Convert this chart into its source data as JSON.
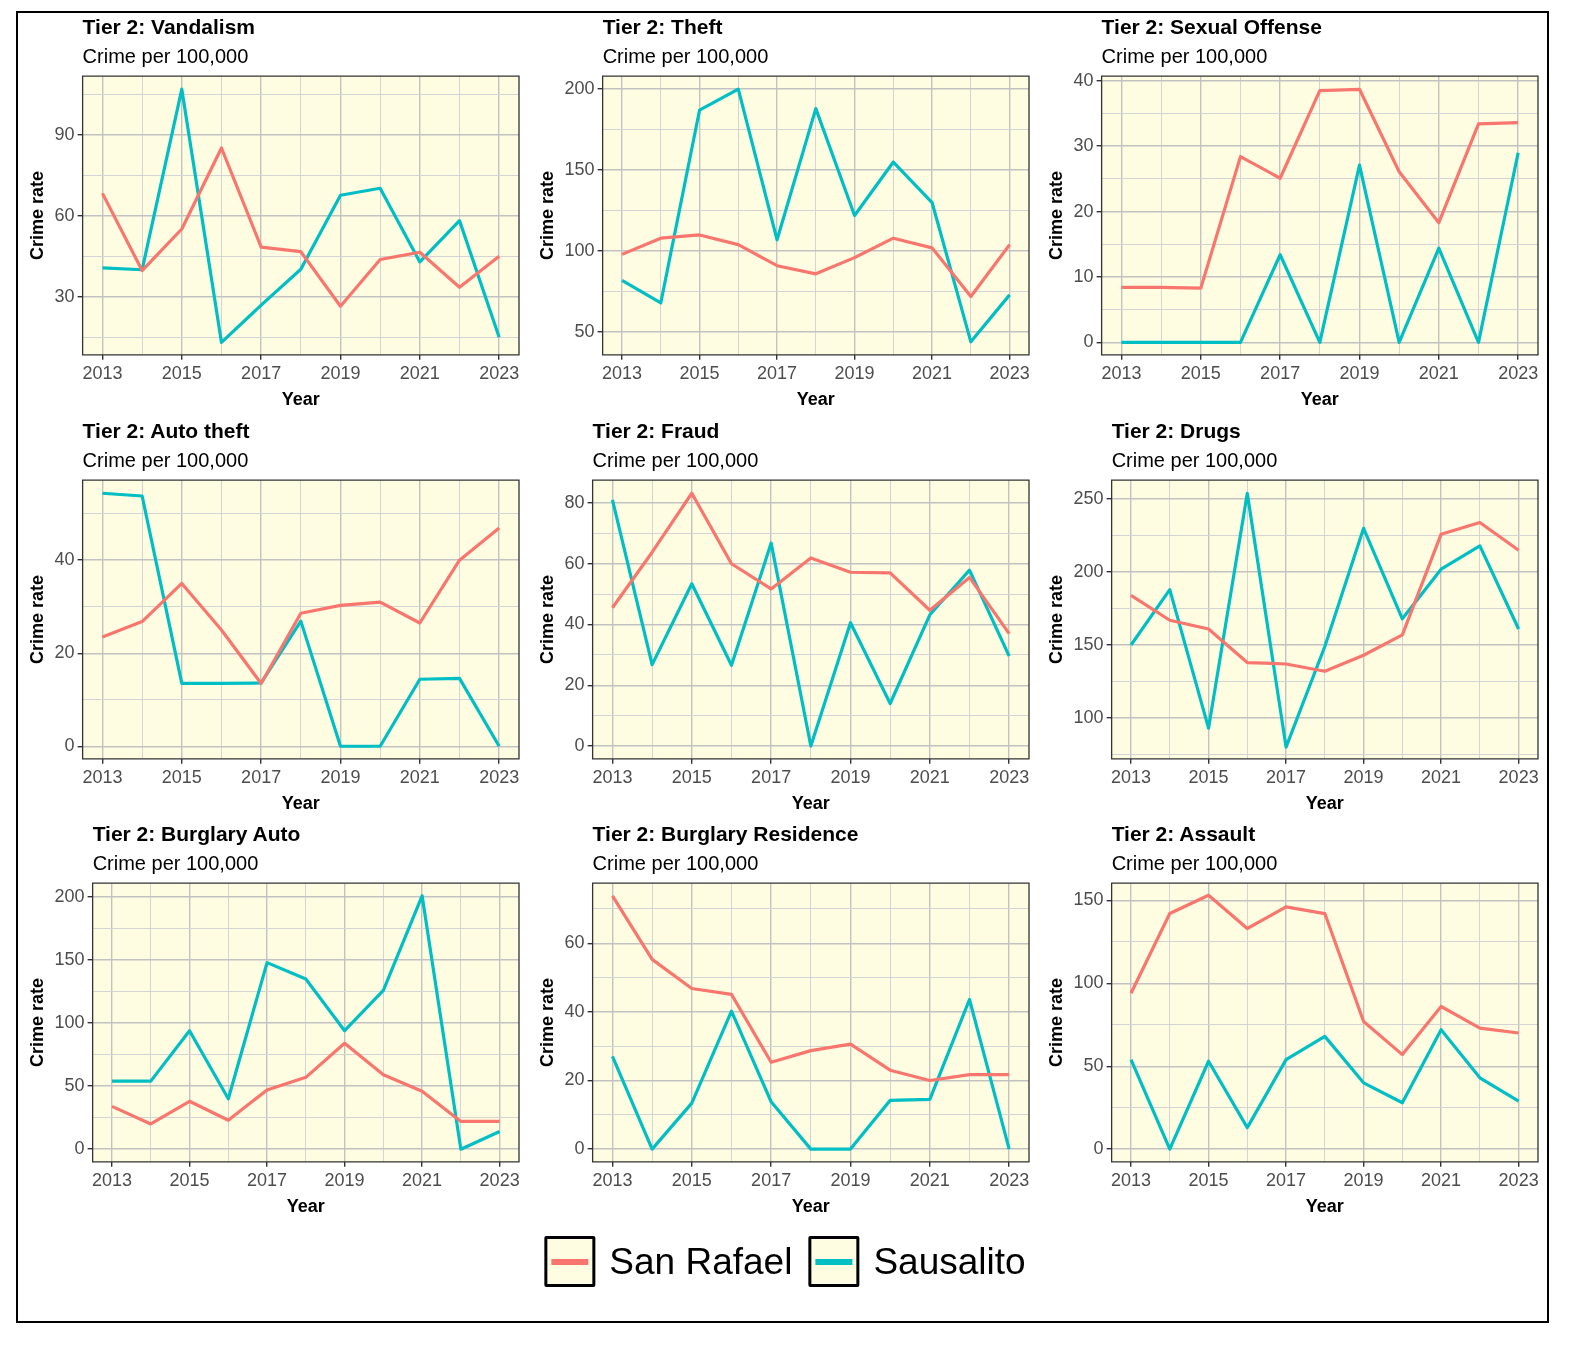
{
  "chart_data": [
    {
      "type": "line",
      "title": "Tier 2: Vandalism",
      "subtitle": "Crime per 100,000",
      "xlabel": "Year",
      "ylabel": "Crime rate",
      "grid": true,
      "x": [
        2013,
        2014,
        2015,
        2016,
        2017,
        2018,
        2019,
        2020,
        2021,
        2022,
        2023
      ],
      "xlim": [
        2012.5,
        2023.5
      ],
      "xticks": [
        2013,
        {
          "value": 2014,
          "label": null
        },
        2015,
        {
          "value": 2016,
          "label": null
        },
        2017,
        {
          "value": 2018,
          "label": null
        },
        2019,
        {
          "value": 2020,
          "label": null
        },
        2021,
        {
          "value": 2022,
          "label": null
        },
        2023
      ],
      "ylim": [
        8.6,
        111.8
      ],
      "yticks": [
        {
          "value": 15,
          "label": null
        },
        30,
        {
          "value": 45,
          "label": null
        },
        60,
        {
          "value": 75,
          "label": null
        },
        90,
        {
          "value": 105,
          "label": null
        }
      ],
      "series": [
        {
          "color": "#f8766d",
          "values": [
            68.4,
            39.8,
            55.2,
            85.2,
            48.5,
            46.8,
            26.6,
            43.9,
            46.6,
            33.6,
            45.1
          ]
        },
        {
          "color": "#00bfc4",
          "values": [
            40.8,
            40.1,
            107.0,
            13.2,
            27.0,
            40.3,
            67.7,
            70.3,
            43.0,
            58.3,
            15.1
          ]
        }
      ]
    },
    {
      "type": "line",
      "title": "Tier 2: Theft",
      "subtitle": "Crime per 100,000",
      "xlabel": "Year",
      "ylabel": "Crime rate",
      "grid": true,
      "x": [
        2013,
        2014,
        2015,
        2016,
        2017,
        2018,
        2019,
        2020,
        2021,
        2022,
        2023
      ],
      "xlim": [
        2012.5,
        2023.5
      ],
      "xticks": [
        2013,
        {
          "value": 2014,
          "label": null
        },
        2015,
        {
          "value": 2016,
          "label": null
        },
        2017,
        {
          "value": 2018,
          "label": null
        },
        2019,
        {
          "value": 2020,
          "label": null
        },
        2021,
        {
          "value": 2022,
          "label": null
        },
        2023
      ],
      "ylim": [
        36,
        208
      ],
      "yticks": [
        50,
        {
          "value": 75,
          "label": null
        },
        100,
        {
          "value": 125,
          "label": null
        },
        150,
        {
          "value": 175,
          "label": null
        },
        200
      ],
      "series": [
        {
          "color": "#f8766d",
          "values": [
            98,
            108,
            110,
            104,
            91,
            86,
            96,
            108,
            102,
            72,
            104
          ]
        },
        {
          "color": "#00bfc4",
          "values": [
            82,
            68,
            187,
            200,
            107,
            188,
            122,
            155,
            130,
            44,
            73
          ]
        }
      ]
    },
    {
      "type": "line",
      "title": "Tier 2: Sexual Offense",
      "subtitle": "Crime per 100,000",
      "xlabel": "Year",
      "ylabel": "Crime rate",
      "grid": true,
      "x": [
        2013,
        2014,
        2015,
        2016,
        2017,
        2018,
        2019,
        2020,
        2021,
        2022,
        2023
      ],
      "xlim": [
        2012.5,
        2023.5
      ],
      "xticks": [
        2013,
        {
          "value": 2014,
          "label": null
        },
        2015,
        {
          "value": 2016,
          "label": null
        },
        2017,
        {
          "value": 2018,
          "label": null
        },
        2019,
        {
          "value": 2020,
          "label": null
        },
        2021,
        {
          "value": 2022,
          "label": null
        },
        2023
      ],
      "ylim": [
        -1.9,
        40.7
      ],
      "yticks": [
        0,
        {
          "value": 5,
          "label": null
        },
        10,
        {
          "value": 15,
          "label": null
        },
        20,
        {
          "value": 25,
          "label": null
        },
        30,
        {
          "value": 35,
          "label": null
        },
        40
      ],
      "series": [
        {
          "color": "#f8766d",
          "values": [
            8.4,
            8.4,
            8.3,
            28.4,
            25.1,
            38.5,
            38.7,
            26.1,
            18.3,
            33.4,
            33.6
          ]
        },
        {
          "color": "#00bfc4",
          "values": [
            0,
            0,
            0,
            0,
            13.4,
            0,
            27.1,
            0,
            14.4,
            0,
            29.0
          ]
        }
      ]
    },
    {
      "type": "line",
      "title": "Tier 2: Auto theft",
      "subtitle": "Crime per 100,000",
      "xlabel": "Year",
      "ylabel": "Crime rate",
      "grid": true,
      "x": [
        2013,
        2014,
        2015,
        2016,
        2017,
        2018,
        2019,
        2020,
        2021,
        2022,
        2023
      ],
      "xlim": [
        2012.5,
        2023.5
      ],
      "xticks": [
        2013,
        {
          "value": 2014,
          "label": null
        },
        2015,
        {
          "value": 2016,
          "label": null
        },
        2017,
        {
          "value": 2018,
          "label": null
        },
        2019,
        {
          "value": 2020,
          "label": null
        },
        2021,
        {
          "value": 2022,
          "label": null
        },
        2023
      ],
      "ylim": [
        -2.7,
        57.2
      ],
      "yticks": [
        0,
        {
          "value": 10,
          "label": null
        },
        20,
        {
          "value": 30,
          "label": null
        },
        40,
        {
          "value": 50,
          "label": null
        }
      ],
      "series": [
        {
          "color": "#f8766d",
          "values": [
            23.5,
            26.8,
            35.0,
            25.0,
            13.5,
            28.6,
            30.3,
            31.0,
            26.5,
            40.0,
            46.9
          ]
        },
        {
          "color": "#00bfc4",
          "values": [
            54.4,
            53.8,
            13.5,
            13.5,
            13.6,
            26.9,
            0,
            0,
            14.4,
            14.6,
            0
          ]
        }
      ]
    },
    {
      "type": "line",
      "title": "Tier 2: Fraud",
      "subtitle": "Crime per 100,000",
      "xlabel": "Year",
      "ylabel": "Crime rate",
      "grid": true,
      "x": [
        2013,
        2014,
        2015,
        2016,
        2017,
        2018,
        2019,
        2020,
        2021,
        2022,
        2023
      ],
      "xlim": [
        2012.5,
        2023.5
      ],
      "xticks": [
        2013,
        {
          "value": 2014,
          "label": null
        },
        2015,
        {
          "value": 2016,
          "label": null
        },
        2017,
        {
          "value": 2018,
          "label": null
        },
        2019,
        {
          "value": 2020,
          "label": null
        },
        2021,
        {
          "value": 2022,
          "label": null
        },
        2023
      ],
      "ylim": [
        -4.2,
        87.5
      ],
      "yticks": [
        0,
        {
          "value": 10,
          "label": null
        },
        20,
        {
          "value": 30,
          "label": null
        },
        40,
        {
          "value": 50,
          "label": null
        },
        60,
        {
          "value": 70,
          "label": null
        },
        80
      ],
      "series": [
        {
          "color": "#f8766d",
          "values": [
            45.5,
            63.8,
            83.2,
            60.0,
            51.7,
            61.9,
            57.2,
            57.0,
            44.7,
            55.5,
            37.0
          ]
        },
        {
          "color": "#00bfc4",
          "values": [
            81.0,
            26.8,
            53.4,
            26.6,
            66.8,
            0,
            40.6,
            14.0,
            43.2,
            57.9,
            29.6
          ]
        }
      ]
    },
    {
      "type": "line",
      "title": "Tier 2: Drugs",
      "subtitle": "Crime per 100,000",
      "xlabel": "Year",
      "ylabel": "Crime rate",
      "grid": true,
      "x": [
        2013,
        2014,
        2015,
        2016,
        2017,
        2018,
        2019,
        2020,
        2021,
        2022,
        2023
      ],
      "xlim": [
        2012.5,
        2023.5
      ],
      "xticks": [
        2013,
        {
          "value": 2014,
          "label": null
        },
        2015,
        {
          "value": 2016,
          "label": null
        },
        2017,
        {
          "value": 2018,
          "label": null
        },
        2019,
        {
          "value": 2020,
          "label": null
        },
        2021,
        {
          "value": 2022,
          "label": null
        },
        2023
      ],
      "ylim": [
        72,
        263
      ],
      "yticks": [
        {
          "value": 75,
          "label": null
        },
        100,
        {
          "value": 125,
          "label": null
        },
        150,
        {
          "value": 175,
          "label": null
        },
        200,
        {
          "value": 225,
          "label": null
        },
        250
      ],
      "series": [
        {
          "color": "#f8766d",
          "values": [
            184,
            167,
            161,
            138,
            137,
            132,
            143,
            157,
            226,
            234,
            215
          ]
        },
        {
          "color": "#00bfc4",
          "values": [
            150,
            188,
            93,
            254,
            80,
            149,
            230,
            168,
            202,
            218,
            161
          ]
        }
      ]
    },
    {
      "type": "line",
      "title": "Tier 2: Burglary Auto",
      "subtitle": "Crime per 100,000",
      "xlabel": "Year",
      "ylabel": "Crime rate",
      "grid": true,
      "x": [
        2013,
        2014,
        2015,
        2016,
        2017,
        2018,
        2019,
        2020,
        2021,
        2022,
        2023
      ],
      "xlim": [
        2012.5,
        2023.5
      ],
      "xticks": [
        2013,
        {
          "value": 2014,
          "label": null
        },
        2015,
        {
          "value": 2016,
          "label": null
        },
        2017,
        {
          "value": 2018,
          "label": null
        },
        2019,
        {
          "value": 2020,
          "label": null
        },
        2021,
        {
          "value": 2022,
          "label": null
        },
        2023
      ],
      "ylim": [
        -10,
        211
      ],
      "yticks": [
        0,
        {
          "value": 25,
          "label": null
        },
        50,
        {
          "value": 75,
          "label": null
        },
        100,
        {
          "value": 125,
          "label": null
        },
        150,
        {
          "value": 175,
          "label": null
        },
        200
      ],
      "series": [
        {
          "color": "#f8766d",
          "values": [
            34,
            20,
            38,
            23,
            47,
            57,
            84,
            59,
            46,
            22,
            22
          ]
        },
        {
          "color": "#00bfc4",
          "values": [
            54,
            54,
            94,
            40,
            148,
            135,
            94,
            126,
            201,
            0,
            14
          ]
        }
      ]
    },
    {
      "type": "line",
      "title": "Tier 2: Burglary Residence",
      "subtitle": "Crime per 100,000",
      "xlabel": "Year",
      "ylabel": "Crime rate",
      "grid": true,
      "legend": "bottom",
      "x": [
        2013,
        2014,
        2015,
        2016,
        2017,
        2018,
        2019,
        2020,
        2021,
        2022,
        2023
      ],
      "xlim": [
        2012.5,
        2023.5
      ],
      "xticks": [
        2013,
        {
          "value": 2014,
          "label": null
        },
        2015,
        {
          "value": 2016,
          "label": null
        },
        2017,
        {
          "value": 2018,
          "label": null
        },
        2019,
        {
          "value": 2020,
          "label": null
        },
        2021,
        {
          "value": 2022,
          "label": null
        },
        2023
      ],
      "ylim": [
        -3.7,
        77.5
      ],
      "yticks": [
        0,
        {
          "value": 10,
          "label": null
        },
        20,
        {
          "value": 30,
          "label": null
        },
        40,
        {
          "value": 50,
          "label": null
        },
        60,
        {
          "value": 70,
          "label": null
        }
      ],
      "series": [
        {
          "name": "San Rafael",
          "color": "#f8766d",
          "values": [
            73.8,
            55.3,
            46.8,
            45.1,
            25.3,
            28.7,
            30.6,
            23.0,
            20.0,
            21.7,
            21.7
          ]
        },
        {
          "name": "Sausalito",
          "color": "#00bfc4",
          "values": [
            27.0,
            0,
            13.4,
            40.2,
            13.8,
            0,
            0,
            14.2,
            14.5,
            43.6,
            0
          ]
        }
      ]
    },
    {
      "type": "line",
      "title": "Tier 2: Assault",
      "subtitle": "Crime per 100,000",
      "xlabel": "Year",
      "ylabel": "Crime rate",
      "grid": true,
      "x": [
        2013,
        2014,
        2015,
        2016,
        2017,
        2018,
        2019,
        2020,
        2021,
        2022,
        2023
      ],
      "xlim": [
        2012.5,
        2023.5
      ],
      "xticks": [
        2013,
        {
          "value": 2014,
          "label": null
        },
        2015,
        {
          "value": 2016,
          "label": null
        },
        2017,
        {
          "value": 2018,
          "label": null
        },
        2019,
        {
          "value": 2020,
          "label": null
        },
        2021,
        {
          "value": 2022,
          "label": null
        },
        2023
      ],
      "ylim": [
        -7.6,
        160.3
      ],
      "yticks": [
        0,
        {
          "value": 25,
          "label": null
        },
        50,
        {
          "value": 75,
          "label": null
        },
        100,
        {
          "value": 125,
          "label": null
        },
        150
      ],
      "series": [
        {
          "color": "#f8766d",
          "values": [
            94,
            142,
            153,
            133,
            146,
            142,
            77,
            57,
            86,
            73,
            70
          ]
        },
        {
          "color": "#00bfc4",
          "values": [
            54,
            0,
            53,
            13,
            54,
            68,
            40,
            28,
            72,
            43,
            29
          ]
        }
      ]
    }
  ]
}
